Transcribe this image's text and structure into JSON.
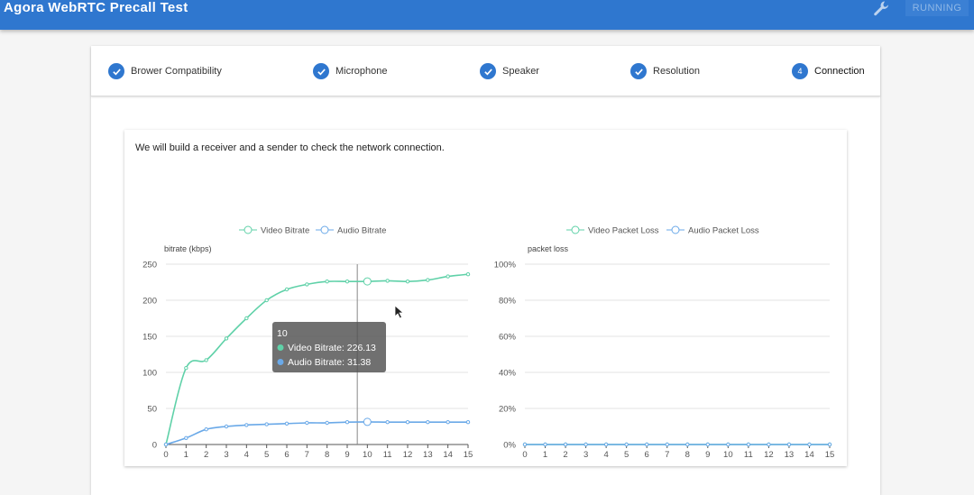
{
  "app": {
    "title": "Agora WebRTC Precall Test",
    "run_button": "RUNNING"
  },
  "steps": [
    {
      "label": "Brower Compatibility",
      "state": "done"
    },
    {
      "label": "Microphone",
      "state": "done"
    },
    {
      "label": "Speaker",
      "state": "done"
    },
    {
      "label": "Resolution",
      "state": "done"
    },
    {
      "label": "Connection",
      "state": "active",
      "number": "4"
    }
  ],
  "connection": {
    "description": "We will build a receiver and a sender to check the network connection."
  },
  "tooltip": {
    "title": "10",
    "lines": [
      {
        "text": "Video Bitrate: 226.13",
        "color": "#5fd1a8"
      },
      {
        "text": "Audio Bitrate: 31.38",
        "color": "#6aa9e8"
      }
    ]
  },
  "colors": {
    "accent": "#2f77cf",
    "video": "#5fd1a8",
    "audio": "#6aa9e8"
  },
  "chart_data": [
    {
      "type": "line",
      "ylabel": "bitrate (kbps)",
      "x": [
        0,
        1,
        2,
        3,
        4,
        5,
        6,
        7,
        8,
        9,
        10,
        11,
        12,
        13,
        14,
        15
      ],
      "ylim": [
        0,
        250
      ],
      "yticks": [
        0,
        50,
        100,
        150,
        200,
        250
      ],
      "ytick_labels": [
        "0",
        "50",
        "100",
        "150",
        "200",
        "250"
      ],
      "series": [
        {
          "name": "Video Bitrate",
          "color": "#5fd1a8",
          "values": [
            0,
            106,
            117,
            147,
            175,
            200,
            215,
            222,
            226,
            226,
            226.13,
            227,
            226,
            228,
            233,
            236
          ]
        },
        {
          "name": "Audio Bitrate",
          "color": "#6aa9e8",
          "values": [
            0,
            9,
            21,
            25,
            27,
            28,
            29,
            30,
            30,
            31,
            31.38,
            31,
            31,
            31,
            31,
            31
          ]
        }
      ],
      "legend": "top-center",
      "highlight_x": 10
    },
    {
      "type": "line",
      "ylabel": "packet loss",
      "x": [
        0,
        1,
        2,
        3,
        4,
        5,
        6,
        7,
        8,
        9,
        10,
        11,
        12,
        13,
        14,
        15
      ],
      "ylim": [
        0,
        100
      ],
      "yticks": [
        0,
        20,
        40,
        60,
        80,
        100
      ],
      "ytick_labels": [
        "0%",
        "20%",
        "40%",
        "60%",
        "80%",
        "100%"
      ],
      "series": [
        {
          "name": "Video Packet Loss",
          "color": "#5fd1a8",
          "values": [
            0,
            0,
            0,
            0,
            0,
            0,
            0,
            0,
            0,
            0,
            0,
            0,
            0,
            0,
            0,
            0
          ]
        },
        {
          "name": "Audio Packet Loss",
          "color": "#6aa9e8",
          "values": [
            0,
            0,
            0,
            0,
            0,
            0,
            0,
            0,
            0,
            0,
            0,
            0,
            0,
            0,
            0,
            0
          ]
        }
      ],
      "legend": "top-center"
    }
  ]
}
